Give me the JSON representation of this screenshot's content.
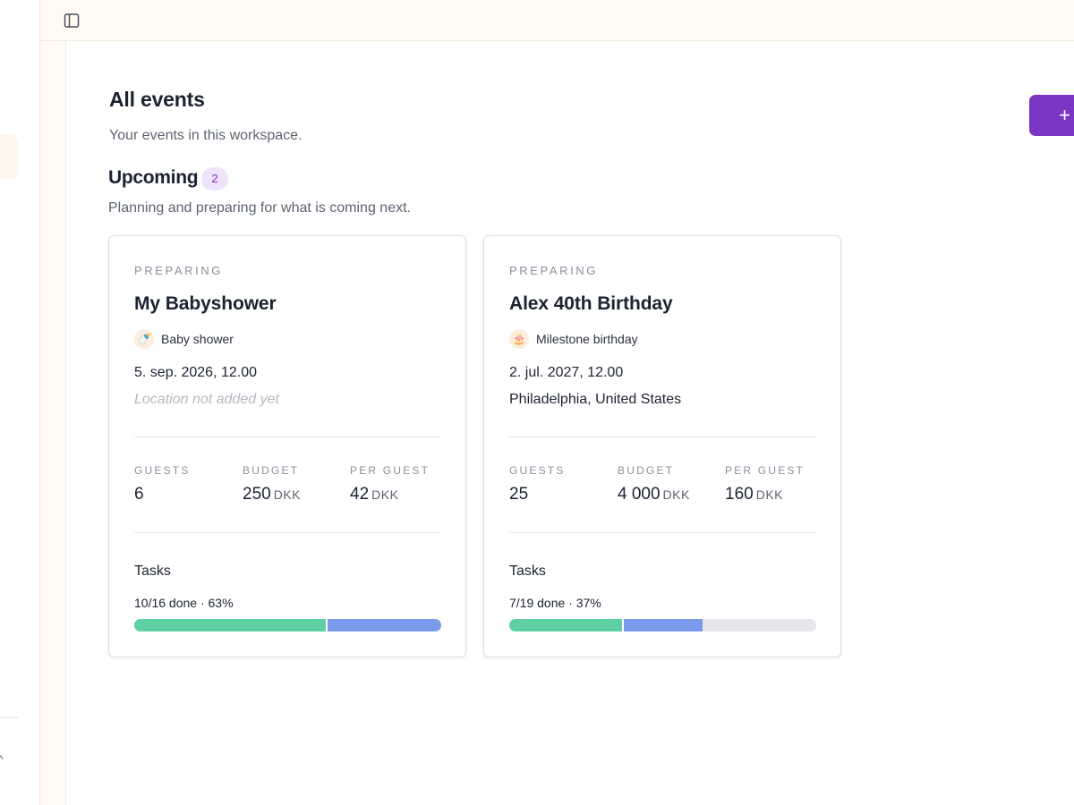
{
  "page": {
    "title": "All events",
    "subtitle": "Your events in this workspace."
  },
  "actions": {
    "add_label": "+"
  },
  "icons": {
    "sidebar_toggle": "sidebar-toggle-icon",
    "add": "plus-icon",
    "collapse": "chevron-up-icon"
  },
  "colors": {
    "accent": "#7a35c2",
    "done": "#5fcfa4",
    "in_progress": "#7a9bec",
    "remaining": "#e6e7ea"
  },
  "section": {
    "title": "Upcoming",
    "count": "2",
    "description": "Planning and preparing for what is coming next."
  },
  "events": [
    {
      "status": "PREPARING",
      "name": "My Babyshower",
      "type_icon": "🍼",
      "type_label": "Baby shower",
      "date": "5. sep. 2026, 12.00",
      "location": "Location not added yet",
      "location_empty": true,
      "stats": {
        "guests_label": "GUESTS",
        "guests": "6",
        "budget_label": "BUDGET",
        "budget": "250",
        "budget_unit": "DKK",
        "per_guest_label": "PER GUEST",
        "per_guest": "42",
        "per_guest_unit": "DKK"
      },
      "tasks_title": "Tasks",
      "tasks_progress": "10/16 done · 63%",
      "progress": {
        "done_fraction": 0.625,
        "in_progress_fraction": 0.375
      }
    },
    {
      "status": "PREPARING",
      "name": "Alex 40th Birthday",
      "type_icon": "🎂",
      "type_label": "Milestone birthday",
      "date": "2. jul. 2027, 12.00",
      "location": "Philadelphia, United States",
      "location_empty": false,
      "stats": {
        "guests_label": "GUESTS",
        "guests": "25",
        "budget_label": "BUDGET",
        "budget": "4 000",
        "budget_unit": "DKK",
        "per_guest_label": "PER GUEST",
        "per_guest": "160",
        "per_guest_unit": "DKK"
      },
      "tasks_title": "Tasks",
      "tasks_progress": "7/19 done · 37%",
      "progress": {
        "done_fraction": 0.368,
        "in_progress_fraction": 0.263
      }
    }
  ]
}
